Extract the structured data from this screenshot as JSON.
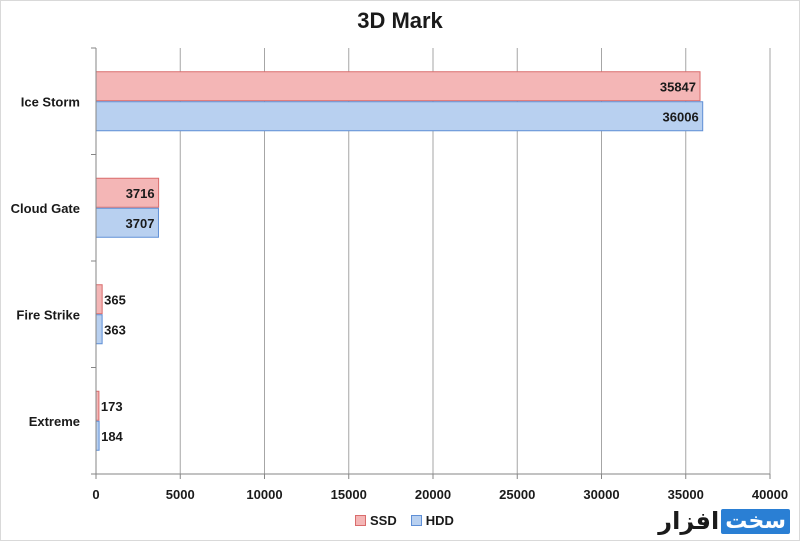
{
  "chart_data": {
    "type": "bar",
    "orientation": "horizontal",
    "title": "3D Mark",
    "categories": [
      "Ice Storm",
      "Cloud Gate",
      "Fire Strike",
      "Extreme"
    ],
    "series": [
      {
        "name": "SSD",
        "values": [
          35847,
          3716,
          365,
          173
        ],
        "fill": "#f4b6b6",
        "stroke": "#d96c6c"
      },
      {
        "name": "HDD",
        "values": [
          36006,
          3707,
          363,
          184
        ],
        "fill": "#b8d0f0",
        "stroke": "#5f8fd6"
      }
    ],
    "xlim": [
      0,
      40000
    ],
    "xticks": [
      "0",
      "5000",
      "10000",
      "15000",
      "20000",
      "25000",
      "30000",
      "35000",
      "40000"
    ],
    "grid": true,
    "legend_position": "bottom"
  },
  "watermark": {
    "text": "افزار",
    "box_text": "سخت"
  }
}
